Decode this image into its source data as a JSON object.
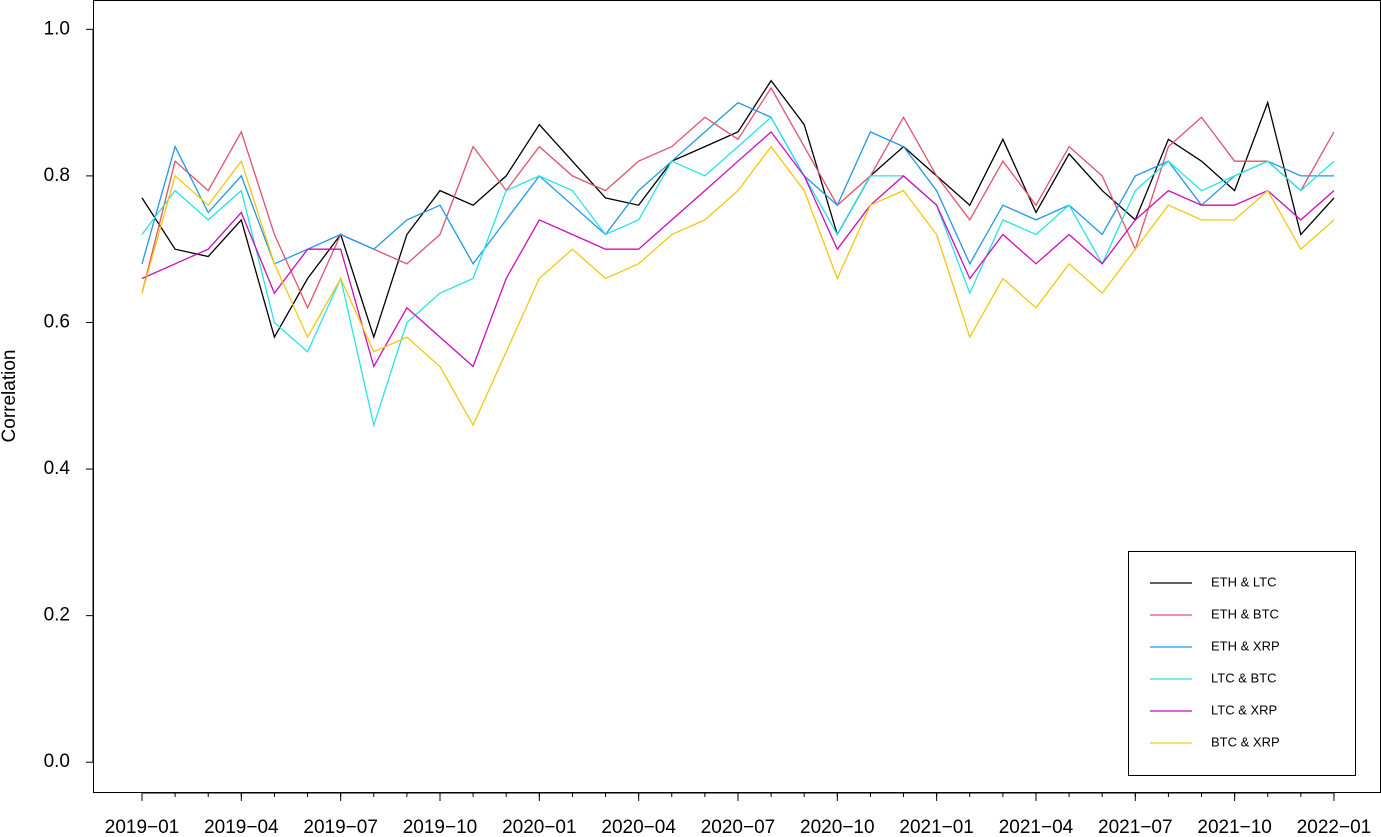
{
  "chart_data": {
    "type": "line",
    "y_label": "Correlation",
    "x": [
      "2019-01",
      "2019-02",
      "2019-03",
      "2019-04",
      "2019-05",
      "2019-06",
      "2019-07",
      "2019-08",
      "2019-09",
      "2019-10",
      "2019-11",
      "2019-12",
      "2020-01",
      "2020-02",
      "2020-03",
      "2020-04",
      "2020-05",
      "2020-06",
      "2020-07",
      "2020-08",
      "2020-09",
      "2020-10",
      "2020-11",
      "2020-12",
      "2021-01",
      "2021-02",
      "2021-03",
      "2021-04",
      "2021-05",
      "2021-06",
      "2021-07",
      "2021-08",
      "2021-09",
      "2021-10",
      "2021-11",
      "2021-12",
      "2022-01"
    ],
    "series": [
      {
        "name": "ETH & LTC",
        "color": "#000000",
        "values": [
          0.77,
          0.7,
          0.69,
          0.74,
          0.58,
          0.66,
          0.72,
          0.58,
          0.72,
          0.78,
          0.76,
          0.8,
          0.87,
          0.82,
          0.77,
          0.76,
          0.82,
          0.84,
          0.86,
          0.93,
          0.87,
          0.72,
          0.8,
          0.84,
          0.8,
          0.76,
          0.85,
          0.75,
          0.83,
          0.78,
          0.74,
          0.85,
          0.82,
          0.78,
          0.9,
          0.72,
          0.77
        ]
      },
      {
        "name": "ETH & BTC",
        "color": "#DF536B",
        "values": [
          0.64,
          0.82,
          0.78,
          0.86,
          0.72,
          0.62,
          0.72,
          0.7,
          0.68,
          0.72,
          0.84,
          0.78,
          0.84,
          0.8,
          0.78,
          0.82,
          0.84,
          0.88,
          0.85,
          0.92,
          0.84,
          0.76,
          0.8,
          0.88,
          0.8,
          0.74,
          0.82,
          0.76,
          0.84,
          0.8,
          0.7,
          0.84,
          0.88,
          0.82,
          0.82,
          0.78,
          0.86
        ]
      },
      {
        "name": "ETH & XRP",
        "color": "#2297E6",
        "values": [
          0.68,
          0.84,
          0.75,
          0.8,
          0.68,
          0.7,
          0.72,
          0.7,
          0.74,
          0.76,
          0.68,
          0.74,
          0.8,
          0.76,
          0.72,
          0.78,
          0.82,
          0.86,
          0.9,
          0.88,
          0.8,
          0.76,
          0.86,
          0.84,
          0.78,
          0.68,
          0.76,
          0.74,
          0.76,
          0.72,
          0.8,
          0.82,
          0.76,
          0.8,
          0.82,
          0.8,
          0.8
        ]
      },
      {
        "name": "LTC & BTC",
        "color": "#28E2E5",
        "values": [
          0.72,
          0.78,
          0.74,
          0.78,
          0.6,
          0.56,
          0.66,
          0.46,
          0.6,
          0.64,
          0.66,
          0.78,
          0.8,
          0.78,
          0.72,
          0.74,
          0.82,
          0.8,
          0.84,
          0.88,
          0.8,
          0.72,
          0.8,
          0.8,
          0.76,
          0.64,
          0.74,
          0.72,
          0.76,
          0.68,
          0.78,
          0.82,
          0.78,
          0.8,
          0.82,
          0.78,
          0.82
        ]
      },
      {
        "name": "LTC & XRP",
        "color": "#CD0BBC",
        "values": [
          0.66,
          0.68,
          0.7,
          0.75,
          0.64,
          0.7,
          0.7,
          0.54,
          0.62,
          0.58,
          0.54,
          0.66,
          0.74,
          0.72,
          0.7,
          0.7,
          0.74,
          0.78,
          0.82,
          0.86,
          0.8,
          0.7,
          0.76,
          0.8,
          0.76,
          0.66,
          0.72,
          0.68,
          0.72,
          0.68,
          0.74,
          0.78,
          0.76,
          0.76,
          0.78,
          0.74,
          0.78
        ]
      },
      {
        "name": "BTC & XRP",
        "color": "#F5C710",
        "values": [
          0.64,
          0.8,
          0.76,
          0.82,
          0.68,
          0.58,
          0.66,
          0.56,
          0.58,
          0.54,
          0.46,
          0.56,
          0.66,
          0.7,
          0.66,
          0.68,
          0.72,
          0.74,
          0.78,
          0.84,
          0.78,
          0.66,
          0.76,
          0.78,
          0.72,
          0.58,
          0.66,
          0.62,
          0.68,
          0.64,
          0.7,
          0.76,
          0.74,
          0.74,
          0.78,
          0.7,
          0.74
        ]
      }
    ],
    "ylim": [
      -0.042,
      1.04
    ],
    "yticks": [
      {
        "value": 0,
        "label": "0.0"
      },
      0.2,
      0.4,
      0.6,
      0.8,
      {
        "value": 1,
        "label": "1.0"
      }
    ],
    "xticks": [
      {
        "value": "2019-01",
        "label": "2019−01"
      },
      {
        "value": "2019-04",
        "label": "2019−04"
      },
      {
        "value": "2019-07",
        "label": "2019−07"
      },
      {
        "value": "2019-10",
        "label": "2019−10"
      },
      {
        "value": "2020-01",
        "label": "2020−01"
      },
      {
        "value": "2020-04",
        "label": "2020−04"
      },
      {
        "value": "2020-07",
        "label": "2020−07"
      },
      {
        "value": "2020-10",
        "label": "2020−10"
      },
      {
        "value": "2021-01",
        "label": "2021−01"
      },
      {
        "value": "2021-04",
        "label": "2021−04"
      },
      {
        "value": "2021-07",
        "label": "2021−07"
      },
      {
        "value": "2021-10",
        "label": "2021−10"
      },
      {
        "value": "2022-01",
        "label": "2022−01"
      }
    ],
    "legend": "bottom-right",
    "grid": false
  }
}
